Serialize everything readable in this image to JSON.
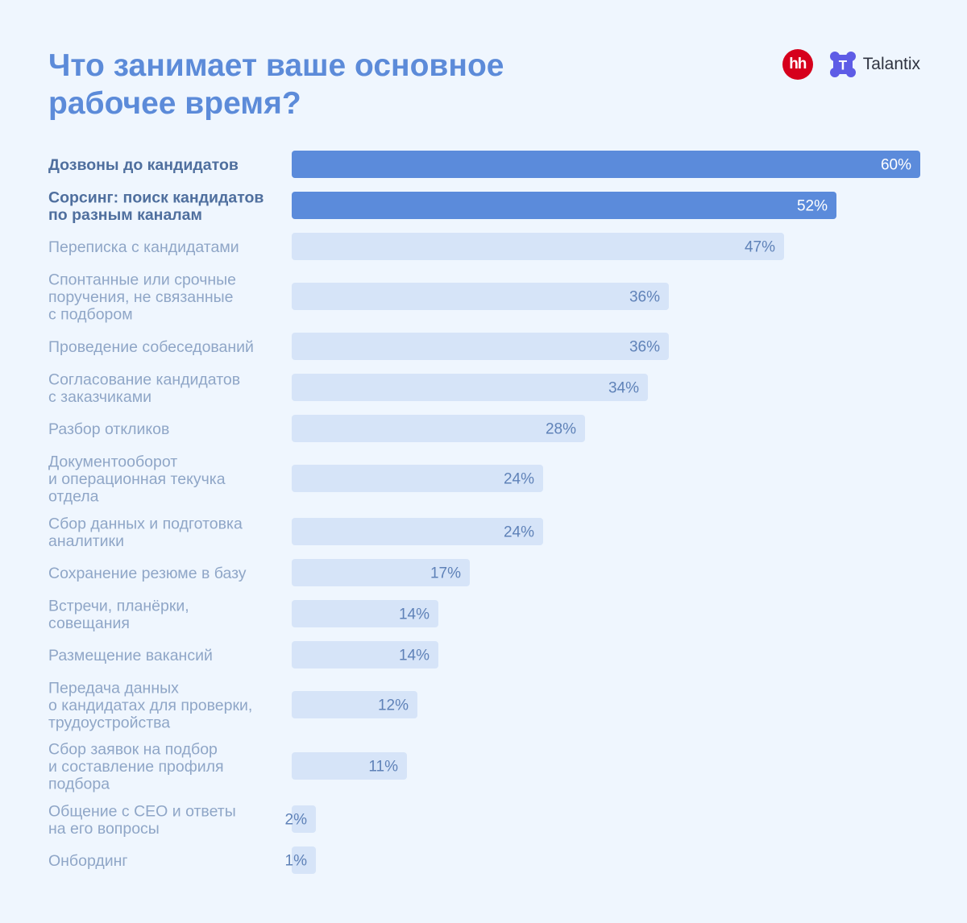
{
  "colors": {
    "background": "#EFF6FE",
    "title": "#5C8BD9",
    "bar_highlight": "#5B8BDB",
    "bar_normal": "#D6E4F8",
    "label_highlight": "#4F6F9E",
    "label_normal": "#8FA6C7",
    "value_on_highlight": "#FFFFFF",
    "value_on_normal": "#5F82B8",
    "hh_red": "#D6001C",
    "talantix_blue": "#5E5CE6"
  },
  "header": {
    "title": "Что занимает ваше основное рабочее время?",
    "logos": {
      "hh": "hh",
      "talantix_letter": "T",
      "talantix": "Talantix"
    }
  },
  "chart_data": {
    "type": "bar",
    "orientation": "horizontal",
    "title": "Что занимает ваше основное рабочее время?",
    "unit": "%",
    "xlim": [
      0,
      60
    ],
    "grid": false,
    "legend": "none",
    "categories": [
      [
        "Дозвоны до кандидатов"
      ],
      [
        "Сорсинг: поиск кандидатов",
        "по разным каналам"
      ],
      [
        "Переписка с кандидатами"
      ],
      [
        "Спонтанные или срочные",
        "поручения, не связанные",
        "с подбором"
      ],
      [
        "Проведение собеседований"
      ],
      [
        "Согласование кандидатов",
        "с заказчиками"
      ],
      [
        "Разбор откликов"
      ],
      [
        "Документооборот",
        "и операционная текучка",
        "отдела"
      ],
      [
        "Сбор данных и подготовка",
        "аналитики"
      ],
      [
        "Сохранение резюме в базу"
      ],
      [
        "Встречи, планёрки,",
        "совещания"
      ],
      [
        "Размещение вакансий"
      ],
      [
        "Передача данных",
        "о кандидатах для проверки,",
        "трудоустройства"
      ],
      [
        "Сбор заявок на подбор",
        "и составление профиля",
        "подбора"
      ],
      [
        "Общение с CEO и ответы",
        "на его вопросы"
      ],
      [
        "Онбординг"
      ]
    ],
    "values": [
      60,
      52,
      47,
      36,
      36,
      34,
      28,
      24,
      24,
      17,
      14,
      14,
      12,
      11,
      2,
      1
    ],
    "value_labels": [
      "60%",
      "52%",
      "47%",
      "36%",
      "36%",
      "34%",
      "28%",
      "24%",
      "24%",
      "17%",
      "14%",
      "14%",
      "12%",
      "11%",
      "2%",
      "1%"
    ],
    "highlighted": [
      true,
      true,
      false,
      false,
      false,
      false,
      false,
      false,
      false,
      false,
      false,
      false,
      false,
      false,
      false,
      false
    ]
  }
}
